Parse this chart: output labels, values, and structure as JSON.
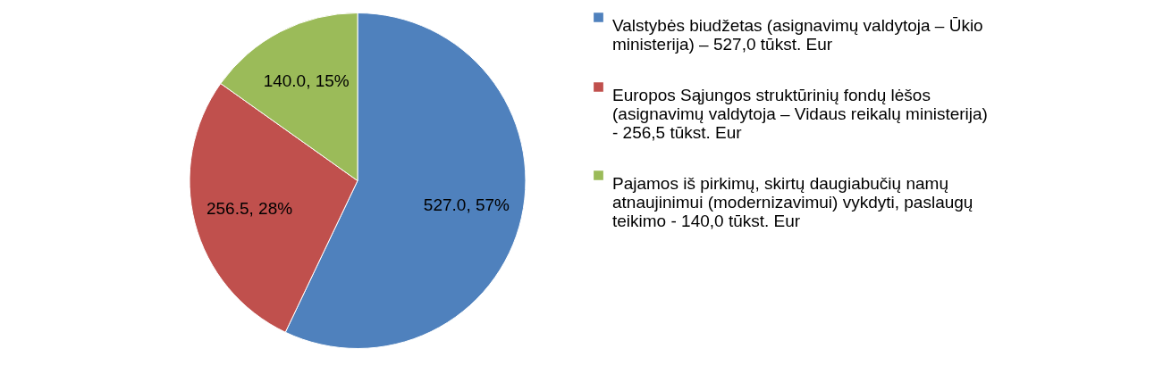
{
  "chart_data": {
    "type": "pie",
    "categories": [
      "Valstybės biudžetas (asignavimų valdytoja – Ūkio ministerija) – 527,0 tūkst. Eur",
      "Europos Sąjungos struktūrinių fondų lėšos (asignavimų valdytoja – Vidaus reikalų ministerija) - 256,5 tūkst. Eur",
      "Pajamos iš pirkimų, skirtų daugiabučių namų atnaujinimui (modernizavimui) vykdyti, paslaugų teikimo - 140,0 tūkst. Eur"
    ],
    "values": [
      527.0,
      256.5,
      140.0
    ],
    "colors": [
      "#4f81bd",
      "#c0504d",
      "#9bbb59"
    ],
    "value_labels": [
      "527.0, 57%",
      "256.5, 28%",
      "140.0, 15%"
    ],
    "legend": "right"
  }
}
